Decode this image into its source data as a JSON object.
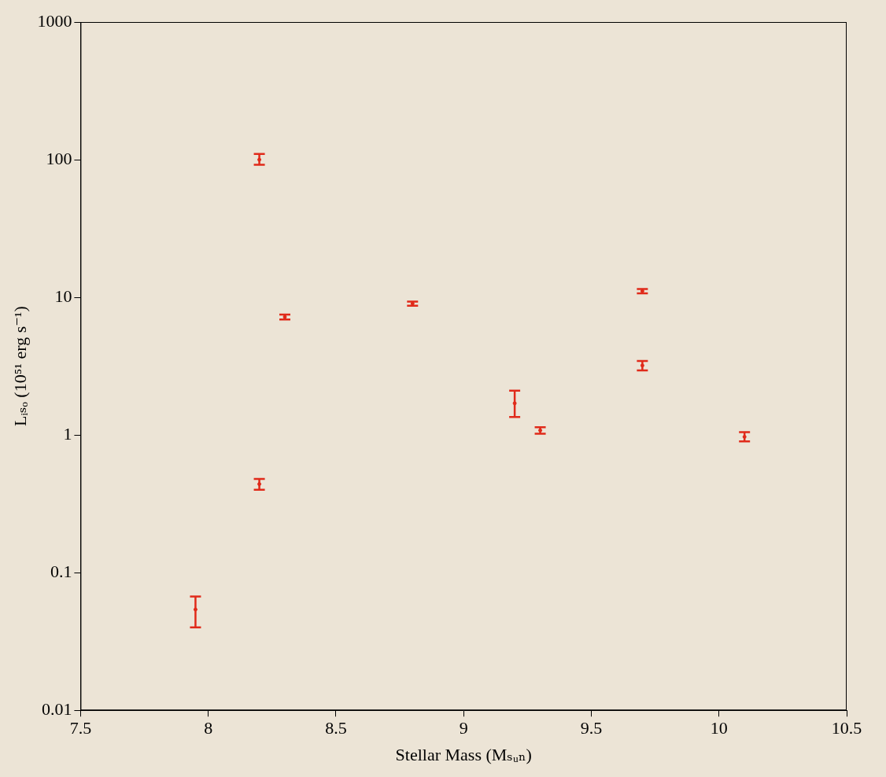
{
  "chart_data": {
    "type": "scatter",
    "x_label": "Stellar Mass (Mₛᵤₙ)",
    "y_label": "Lᵢₛₒ (10⁵¹ erg s⁻¹)",
    "x": [
      7.95,
      8.2,
      8.2,
      8.3,
      8.8,
      9.2,
      9.3,
      9.7,
      9.7,
      10.1
    ],
    "values": [
      0.054,
      100,
      0.44,
      7.2,
      9.0,
      1.7,
      1.08,
      11.1,
      3.2,
      0.97
    ],
    "y_lower": [
      0.04,
      92,
      0.4,
      6.9,
      8.7,
      1.35,
      1.02,
      10.7,
      2.95,
      0.9
    ],
    "y_upper": [
      0.067,
      110,
      0.48,
      7.5,
      9.3,
      2.1,
      1.14,
      11.5,
      3.45,
      1.05
    ],
    "color": "#e02a1a",
    "marker": "circle",
    "log": "y",
    "grid": false,
    "xlim": [
      7.5,
      10.5
    ],
    "xticks": [
      7.5,
      8,
      8.5,
      9,
      9.5,
      10,
      10.5
    ],
    "ylim": [
      0.01,
      1000
    ],
    "yticks": [
      0.01,
      0.1,
      1,
      10,
      100,
      1000
    ]
  }
}
